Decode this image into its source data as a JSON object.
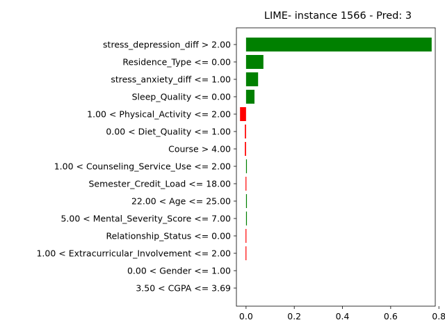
{
  "chart_data": {
    "type": "bar",
    "orientation": "horizontal",
    "title": "LIME- instance 1566 - Pred: 3",
    "xlabel": "",
    "ylabel": "",
    "xlim": [
      -0.04,
      0.785
    ],
    "xticks": [
      0.0,
      0.2,
      0.4,
      0.6,
      0.8
    ],
    "xtick_labels": [
      "0.0",
      "0.2",
      "0.4",
      "0.6",
      "0.8"
    ],
    "grid": false,
    "positive_color": "#008000",
    "negative_color": "#ff0000",
    "categories": [
      "stress_depression_diff > 2.00",
      "Residence_Type <= 0.00",
      "stress_anxiety_diff <= 1.00",
      "Sleep_Quality <= 0.00",
      "1.00 < Physical_Activity <= 2.00",
      "0.00 < Diet_Quality <= 1.00",
      "Course > 4.00",
      "1.00 < Counseling_Service_Use <= 2.00",
      "Semester_Credit_Load <= 18.00",
      "22.00 < Age <= 25.00",
      "5.00 < Mental_Severity_Score <= 7.00",
      "Relationship_Status <= 0.00",
      "1.00 < Extracurricular_Involvement <= 2.00",
      "0.00 < Gender <= 1.00",
      "3.50 < CGPA <= 3.69"
    ],
    "values": [
      0.77,
      0.072,
      0.05,
      0.035,
      -0.025,
      -0.005,
      -0.005,
      0.003,
      -0.002,
      0.002,
      0.002,
      -0.002,
      -0.002,
      0.0,
      0.0
    ]
  }
}
